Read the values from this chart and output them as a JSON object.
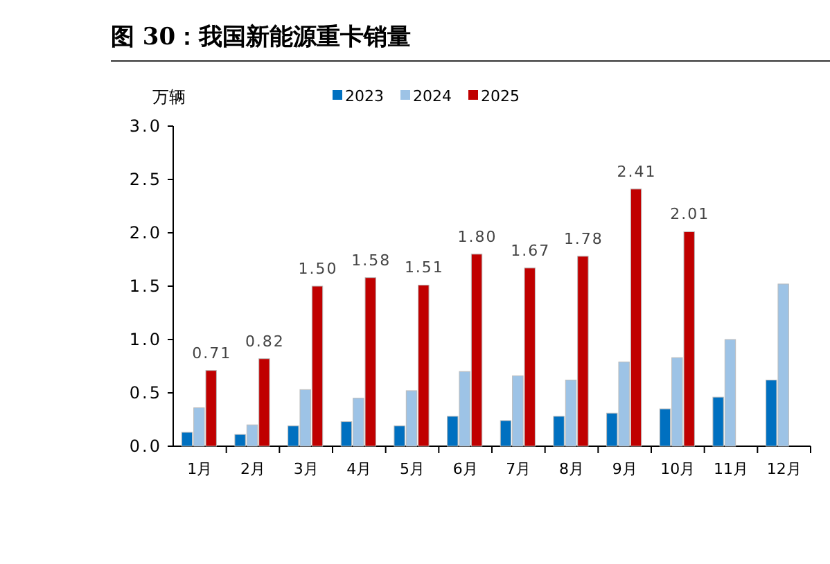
{
  "chart_data": {
    "type": "bar",
    "title": "图 30：我国新能源重卡销量",
    "ylabel": "万辆",
    "categories": [
      "1月",
      "2月",
      "3月",
      "4月",
      "5月",
      "6月",
      "7月",
      "8月",
      "9月",
      "10月",
      "11月",
      "12月"
    ],
    "series": [
      {
        "name": "2023",
        "color": "#0070c0",
        "values": [
          0.13,
          0.11,
          0.19,
          0.23,
          0.19,
          0.28,
          0.24,
          0.28,
          0.31,
          0.35,
          0.46,
          0.62
        ]
      },
      {
        "name": "2024",
        "color": "#9dc3e6",
        "values": [
          0.36,
          0.2,
          0.53,
          0.45,
          0.52,
          0.7,
          0.66,
          0.62,
          0.79,
          0.83,
          1.0,
          1.52
        ]
      },
      {
        "name": "2025",
        "color": "#c00000",
        "values": [
          0.71,
          0.82,
          1.5,
          1.58,
          1.51,
          1.8,
          1.67,
          1.78,
          2.41,
          2.01,
          null,
          null
        ],
        "value_labels": [
          "0.71",
          "0.82",
          "1.50",
          "1.58",
          "1.51",
          "1.80",
          "1.67",
          "1.78",
          "2.41",
          "2.01",
          null,
          null
        ]
      }
    ],
    "ylim": [
      0,
      3
    ],
    "yticks": [
      {
        "value": 0,
        "label": "0.0"
      },
      {
        "value": 0.5,
        "label": "0.5"
      },
      {
        "value": 1,
        "label": "1.0"
      },
      {
        "value": 1.5,
        "label": "1.5"
      },
      {
        "value": 2,
        "label": "2.0"
      },
      {
        "value": 2.5,
        "label": "2.5"
      },
      {
        "value": 3,
        "label": "3.0"
      }
    ],
    "grid": false,
    "legend": "top"
  }
}
